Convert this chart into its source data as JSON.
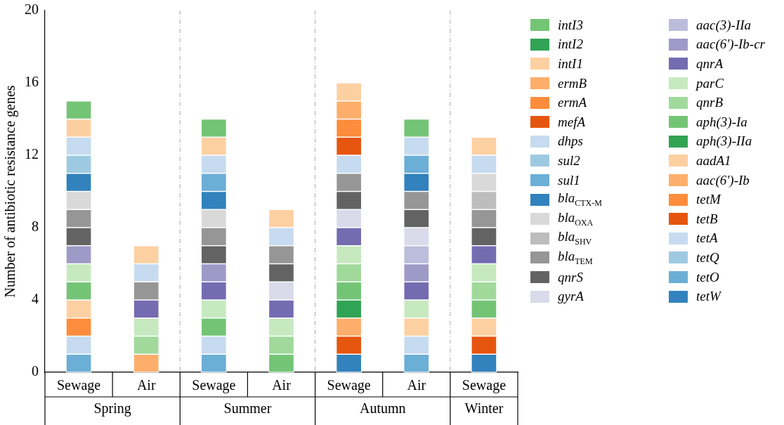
{
  "chart_data": {
    "type": "bar",
    "stacked": true,
    "ylabel": "Number of antibiotic resistance genes",
    "categories": [
      "Sewage",
      "Air",
      "Sewage",
      "Air",
      "Sewage",
      "Air",
      "Sewage"
    ],
    "annotations": [
      "Spring",
      "Summer",
      "Autumn",
      "Winter"
    ],
    "ylim": [
      0,
      20
    ],
    "yticks": [
      0,
      4,
      8,
      12,
      16,
      20
    ],
    "grid": false,
    "legend": "right",
    "series": [
      {
        "name": "tetW",
        "color": "#3182bd",
        "values": [
          null,
          null,
          null,
          null,
          1,
          null,
          1
        ]
      },
      {
        "name": "tetO",
        "color": "#6baed6",
        "values": [
          1,
          null,
          1,
          null,
          null,
          1,
          null
        ]
      },
      {
        "name": "tetQ",
        "color": "#9ecae1",
        "values": [
          null,
          null,
          null,
          null,
          null,
          null,
          null
        ]
      },
      {
        "name": "tetA",
        "color": "#c6dbef",
        "values": [
          1,
          null,
          1,
          null,
          null,
          1,
          null
        ]
      },
      {
        "name": "tetB",
        "color": "#e6550d",
        "values": [
          null,
          null,
          null,
          null,
          1,
          null,
          1
        ]
      },
      {
        "name": "tetM",
        "color": "#fd8d3c",
        "values": [
          1,
          null,
          null,
          null,
          null,
          null,
          null
        ]
      },
      {
        "name": "aac(6')-Ib",
        "color": "#fdae6b",
        "values": [
          null,
          1,
          null,
          null,
          1,
          null,
          null
        ]
      },
      {
        "name": "aadA1",
        "color": "#fdd0a2",
        "values": [
          1,
          null,
          null,
          null,
          null,
          1,
          1
        ]
      },
      {
        "name": "aph(3)-IIa",
        "color": "#31a354",
        "values": [
          null,
          null,
          null,
          null,
          1,
          null,
          null
        ]
      },
      {
        "name": "aph(3)-Ia",
        "color": "#74c476",
        "values": [
          1,
          null,
          1,
          1,
          1,
          null,
          1
        ]
      },
      {
        "name": "qnrB",
        "color": "#a1d99b",
        "values": [
          null,
          1,
          null,
          1,
          1,
          null,
          1
        ]
      },
      {
        "name": "parC",
        "color": "#c7e9c0",
        "values": [
          1,
          1,
          1,
          1,
          1,
          1,
          1
        ]
      },
      {
        "name": "qnrA",
        "color": "#756bb1",
        "values": [
          null,
          1,
          1,
          1,
          1,
          1,
          1
        ]
      },
      {
        "name": "aac(6')-Ib-cr",
        "color": "#9e9ac8",
        "values": [
          1,
          null,
          1,
          null,
          null,
          1,
          null
        ]
      },
      {
        "name": "aac(3)-IIa",
        "color": "#bcbddc",
        "values": [
          null,
          null,
          null,
          null,
          null,
          1,
          null
        ]
      },
      {
        "name": "gyrA",
        "color": "#dadaeb",
        "values": [
          null,
          null,
          null,
          1,
          1,
          1,
          null
        ]
      },
      {
        "name": "qnrS",
        "color": "#636363",
        "values": [
          1,
          null,
          1,
          1,
          1,
          1,
          1
        ]
      },
      {
        "name": "bla$_{TEM}$",
        "color": "#969696",
        "values": [
          1,
          1,
          1,
          1,
          1,
          1,
          1
        ]
      },
      {
        "name": "bla$_{SHV}$",
        "color": "#bdbdbd",
        "values": [
          null,
          null,
          null,
          null,
          null,
          null,
          1
        ]
      },
      {
        "name": "bla$_{OXA}$",
        "color": "#d9d9d9",
        "values": [
          1,
          null,
          1,
          null,
          null,
          null,
          1
        ]
      },
      {
        "name": "bla$_{CTX-M}$",
        "color": "#3182bd",
        "values": [
          1,
          null,
          1,
          null,
          null,
          1,
          null
        ]
      },
      {
        "name": "sul1",
        "color": "#6baed6",
        "values": [
          null,
          null,
          1,
          null,
          null,
          1,
          null
        ]
      },
      {
        "name": "sul2",
        "color": "#9ecae1",
        "values": [
          1,
          null,
          null,
          null,
          null,
          null,
          null
        ]
      },
      {
        "name": "dhps",
        "color": "#c6dbef",
        "values": [
          1,
          1,
          1,
          1,
          1,
          1,
          1
        ]
      },
      {
        "name": "mefA",
        "color": "#e6550d",
        "values": [
          null,
          null,
          null,
          null,
          1,
          null,
          null
        ]
      },
      {
        "name": "ermA",
        "color": "#fd8d3c",
        "values": [
          null,
          null,
          null,
          null,
          1,
          null,
          null
        ]
      },
      {
        "name": "ermB",
        "color": "#fdae6b",
        "values": [
          null,
          null,
          null,
          null,
          1,
          null,
          null
        ]
      },
      {
        "name": "intI1",
        "color": "#fdd0a2",
        "values": [
          1,
          1,
          1,
          1,
          1,
          null,
          1
        ]
      },
      {
        "name": "intI2",
        "color": "#31a354",
        "values": [
          null,
          null,
          null,
          null,
          null,
          null,
          null
        ]
      },
      {
        "name": "intI3",
        "color": "#74c476",
        "values": [
          1,
          null,
          1,
          null,
          null,
          1,
          null
        ]
      }
    ]
  }
}
